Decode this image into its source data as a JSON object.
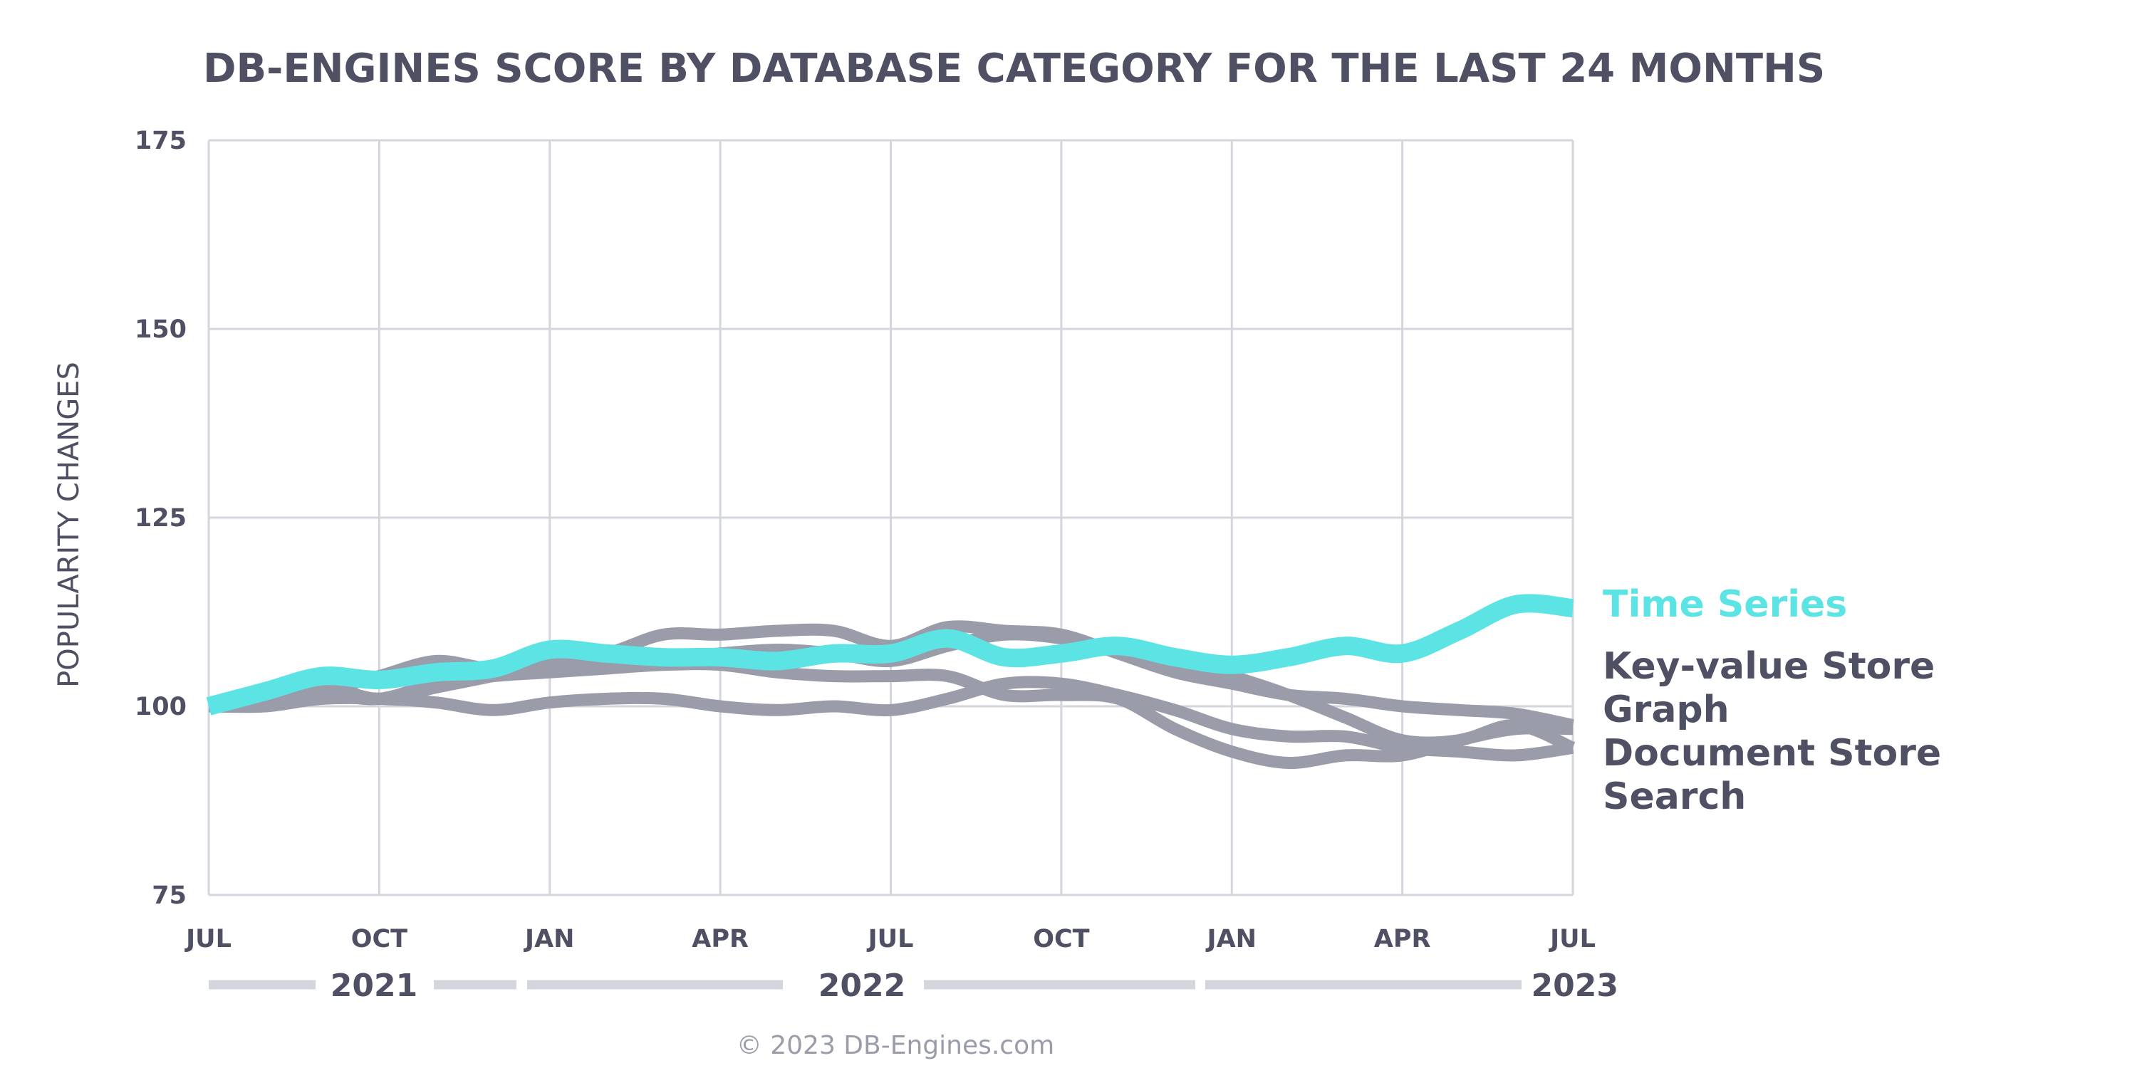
{
  "chart_data": {
    "type": "line",
    "title": "DB-ENGINES SCORE BY DATABASE CATEGORY FOR THE LAST 24 MONTHS",
    "ylabel": "POPULARITY CHANGES",
    "xlabel": "",
    "ylim": [
      75,
      175
    ],
    "yticks": [
      75,
      100,
      125,
      150,
      175
    ],
    "x": [
      "2021-07",
      "2021-08",
      "2021-09",
      "2021-10",
      "2021-11",
      "2021-12",
      "2022-01",
      "2022-02",
      "2022-03",
      "2022-04",
      "2022-05",
      "2022-06",
      "2022-07",
      "2022-08",
      "2022-09",
      "2022-10",
      "2022-11",
      "2022-12",
      "2023-01",
      "2023-02",
      "2023-03",
      "2023-04",
      "2023-05",
      "2023-06",
      "2023-07"
    ],
    "xtick_labels": [
      "JUL",
      "OCT",
      "JAN",
      "APR",
      "JUL",
      "OCT",
      "JAN",
      "APR",
      "JUL"
    ],
    "year_labels": [
      "2021",
      "2022",
      "2023"
    ],
    "grid": true,
    "legend": "right",
    "series": [
      {
        "name": "Time Series",
        "color": "#5ce3e3",
        "highlight": true,
        "values": [
          100,
          102,
          104,
          103.5,
          104.5,
          105,
          107.5,
          107,
          106.5,
          106.5,
          106,
          107,
          107,
          109,
          106.5,
          107,
          108,
          106.5,
          105.5,
          106.5,
          108,
          107,
          110,
          113.5,
          113
        ]
      },
      {
        "name": "Key-value Store",
        "color": "#9a9caa",
        "values": [
          100,
          101,
          102,
          104,
          106,
          105,
          106,
          107,
          109.5,
          109.5,
          110,
          110,
          108,
          110.5,
          110,
          109.5,
          107,
          104.5,
          103,
          101.5,
          101,
          100,
          99.5,
          99,
          97.5
        ]
      },
      {
        "name": "Graph",
        "color": "#9a9caa",
        "values": [
          100,
          100.5,
          101.5,
          101,
          103,
          104,
          104.5,
          105,
          105.5,
          105.5,
          104.5,
          104,
          104,
          104,
          101.5,
          101.5,
          101,
          97,
          94,
          92.5,
          93.5,
          93.5,
          95.5,
          97,
          97
        ]
      },
      {
        "name": "Document Store",
        "color": "#9a9caa",
        "values": [
          100,
          101,
          102.5,
          101,
          102.5,
          104,
          105.5,
          106,
          106.5,
          107,
          107.5,
          107,
          106,
          108,
          109.5,
          109,
          107.5,
          106,
          104,
          101.5,
          98.5,
          95.5,
          95.5,
          97.5,
          94.5
        ]
      },
      {
        "name": "Search",
        "color": "#9a9caa",
        "values": [
          100,
          100,
          101,
          101,
          100.5,
          99.5,
          100.5,
          101,
          101,
          100,
          99.5,
          100,
          99.5,
          101,
          103,
          103,
          101.5,
          99.5,
          97,
          96,
          96,
          94.5,
          94,
          93.5,
          94.5
        ]
      }
    ],
    "legend_order": [
      "Time Series",
      "Key-value Store",
      "Graph",
      "Document Store",
      "Search"
    ]
  },
  "footer": {
    "copyright": "© 2023 DB-Engines.com"
  },
  "colors": {
    "text": "#4f5063",
    "grid": "#d4d6de",
    "accent": "#5ce3e3",
    "muted": "#9a9caa"
  }
}
